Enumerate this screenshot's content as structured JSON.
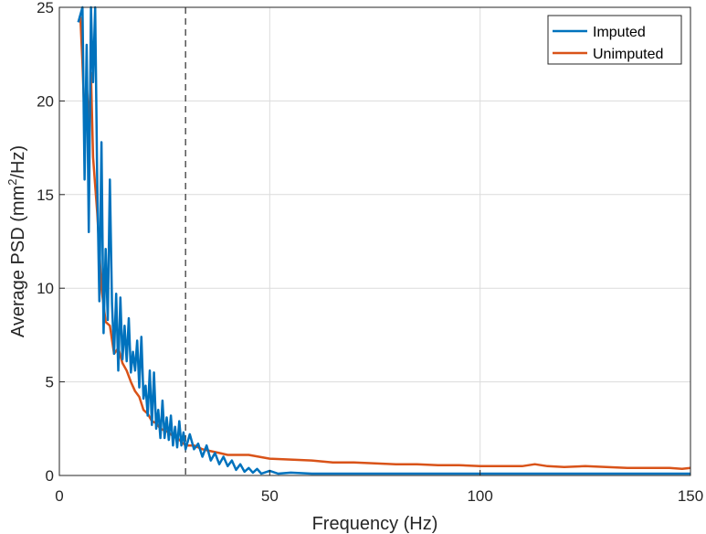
{
  "chart_data": {
    "type": "line",
    "title": "",
    "xlabel": "Frequency (Hz)",
    "ylabel": {
      "prefix": "Average PSD (mm",
      "superscript": "2",
      "suffix": "/Hz)"
    },
    "xlim": [
      0,
      150
    ],
    "ylim": [
      0,
      25
    ],
    "xticks": [
      0,
      50,
      100,
      150
    ],
    "yticks": [
      0,
      5,
      10,
      15,
      20,
      25
    ],
    "grid": true,
    "legend_location": "top-right",
    "reference_line": {
      "x": 30,
      "style": "dashed",
      "color": "#555555"
    },
    "series": [
      {
        "name": "Imputed",
        "color": "#0072BD",
        "x": [
          4.5,
          5.5,
          6.0,
          6.5,
          7.0,
          7.5,
          8.0,
          8.5,
          9.0,
          9.5,
          10.0,
          10.5,
          11.0,
          11.5,
          12.0,
          12.5,
          13.0,
          13.5,
          14.0,
          14.5,
          15.0,
          15.5,
          16.0,
          16.5,
          17.0,
          17.5,
          18.0,
          18.5,
          19.0,
          19.5,
          20.0,
          20.5,
          21.0,
          21.5,
          22.0,
          22.5,
          23.0,
          23.5,
          24.0,
          24.5,
          25.0,
          25.5,
          26.0,
          26.5,
          27.0,
          27.5,
          28.0,
          28.5,
          29.0,
          29.5,
          30.0,
          31,
          32,
          33,
          34,
          35,
          36,
          37,
          38,
          39,
          40,
          41,
          42,
          43,
          44,
          45,
          46,
          47,
          48,
          50,
          52,
          55,
          60,
          70,
          80,
          90,
          100,
          110,
          120,
          130,
          140,
          150
        ],
        "y": [
          24.2,
          25.0,
          15.8,
          23.0,
          13.0,
          25.0,
          21.0,
          25.0,
          15.5,
          9.3,
          17.8,
          7.6,
          12.1,
          8.3,
          15.8,
          9.2,
          6.5,
          9.7,
          5.6,
          9.5,
          6.2,
          8.0,
          6.1,
          8.4,
          5.5,
          6.6,
          5.6,
          7.2,
          4.7,
          7.4,
          4.1,
          4.8,
          3.2,
          5.6,
          2.7,
          5.5,
          2.5,
          3.5,
          2.0,
          4.0,
          2.0,
          3.1,
          1.9,
          3.2,
          1.6,
          2.6,
          1.5,
          2.9,
          1.6,
          2.3,
          1.4,
          2.2,
          1.4,
          1.7,
          1.0,
          1.6,
          0.8,
          1.2,
          0.6,
          1.0,
          0.5,
          0.8,
          0.3,
          0.6,
          0.2,
          0.4,
          0.15,
          0.35,
          0.1,
          0.25,
          0.1,
          0.15,
          0.1,
          0.1,
          0.1,
          0.1,
          0.1,
          0.1,
          0.1,
          0.1,
          0.1,
          0.1
        ]
      },
      {
        "name": "Unimputed",
        "color": "#D95319",
        "x": [
          5.0,
          5.5,
          6.0,
          6.5,
          7.0,
          7.5,
          8.0,
          8.5,
          9.0,
          10.0,
          11.0,
          12.0,
          13.0,
          14.0,
          15.0,
          16.0,
          17.0,
          18.0,
          19.0,
          20.0,
          21.0,
          22.0,
          23.0,
          24.0,
          25.0,
          26.0,
          27.0,
          28.0,
          29.0,
          30.0,
          32.0,
          34.0,
          36.0,
          38.0,
          40.0,
          42.0,
          45.0,
          50.0,
          55.0,
          60.0,
          65.0,
          70.0,
          75.0,
          80.0,
          85.0,
          90.0,
          95.0,
          100.0,
          105.0,
          110.0,
          113.0,
          116.0,
          120.0,
          125.0,
          130.0,
          135.0,
          140.0,
          145.0,
          148.0,
          150.0
        ],
        "y": [
          24.5,
          22.0,
          19.0,
          21.0,
          18.5,
          21.5,
          17.0,
          15.5,
          14.0,
          10.0,
          8.2,
          8.0,
          6.5,
          6.8,
          6.0,
          5.6,
          5.0,
          4.5,
          4.2,
          3.5,
          3.3,
          2.9,
          2.8,
          2.5,
          2.4,
          2.3,
          2.1,
          2.0,
          1.8,
          1.6,
          1.6,
          1.4,
          1.3,
          1.2,
          1.1,
          1.1,
          1.1,
          0.9,
          0.85,
          0.8,
          0.7,
          0.7,
          0.65,
          0.6,
          0.6,
          0.55,
          0.55,
          0.5,
          0.5,
          0.5,
          0.6,
          0.5,
          0.45,
          0.5,
          0.45,
          0.4,
          0.4,
          0.4,
          0.35,
          0.4
        ]
      }
    ]
  }
}
